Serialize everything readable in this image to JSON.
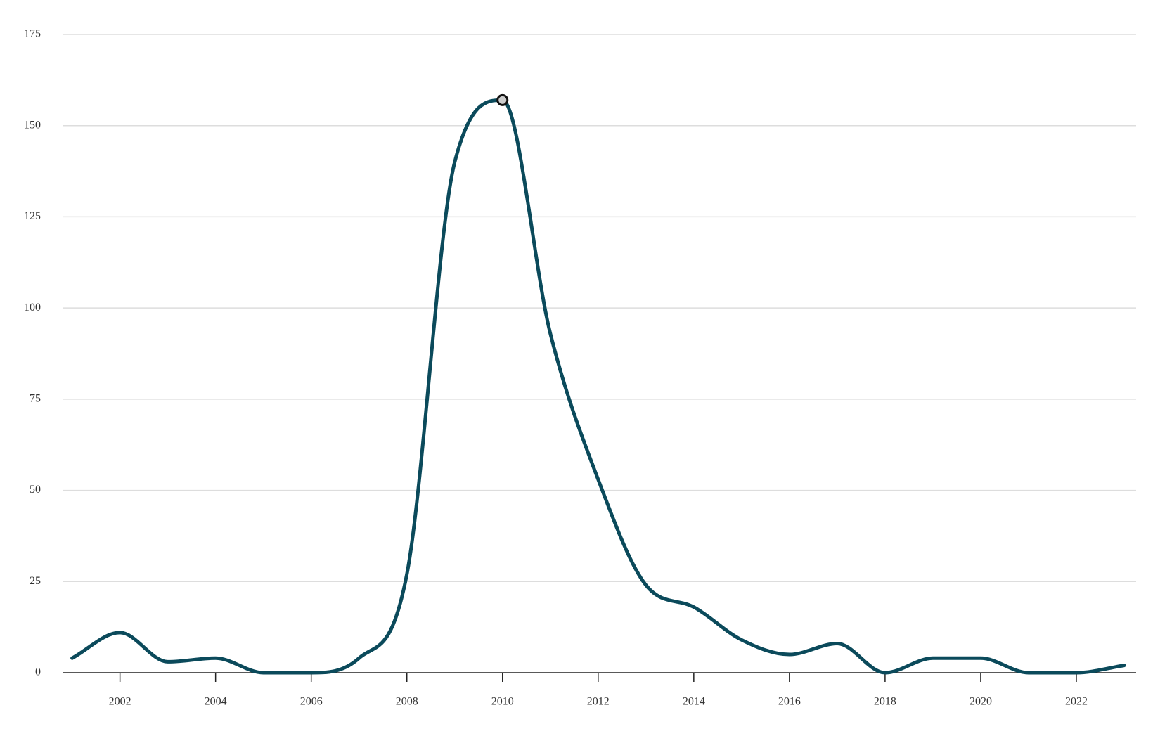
{
  "chart_data": {
    "type": "line",
    "x": [
      2001,
      2002,
      2003,
      2004,
      2005,
      2006,
      2007,
      2008,
      2009,
      2010,
      2011,
      2012,
      2013,
      2014,
      2015,
      2016,
      2017,
      2018,
      2019,
      2020,
      2021,
      2022,
      2023
    ],
    "series": [
      {
        "color": "#0b4a5b",
        "values": [
          4,
          11,
          3,
          4,
          0,
          0,
          4,
          27,
          140,
          157,
          93,
          53,
          24,
          18,
          9,
          5,
          8,
          0,
          4,
          4,
          0,
          0,
          2
        ]
      }
    ],
    "xlim": [
      2000.8,
      2023.25
    ],
    "xticks": [
      2002,
      2004,
      2006,
      2008,
      2010,
      2012,
      2014,
      2016,
      2018,
      2020,
      2022
    ],
    "ylim": [
      0,
      175
    ],
    "yticks": [
      0,
      25,
      50,
      75,
      100,
      125,
      150,
      175
    ],
    "grid": true,
    "smooth": true
  }
}
